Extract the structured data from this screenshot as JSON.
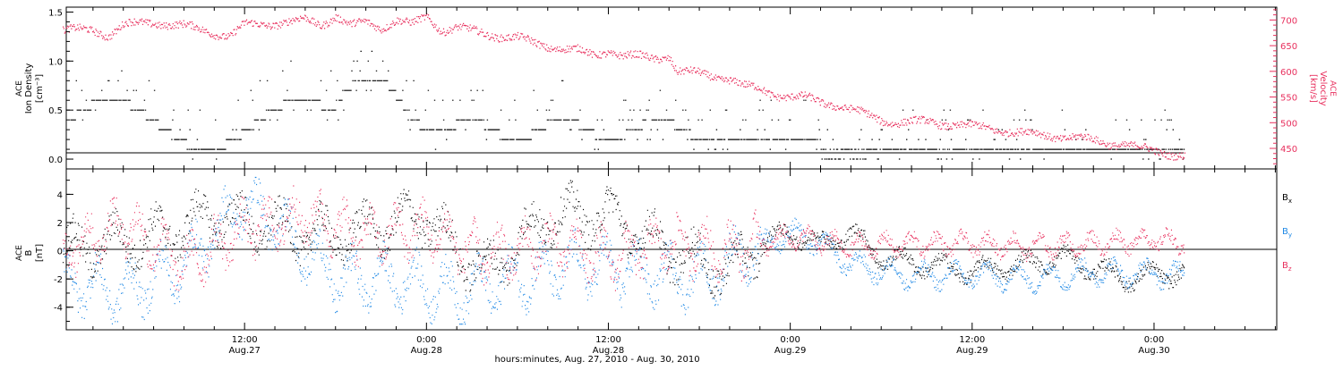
{
  "colors": {
    "black": "#000000",
    "velocity": "#e8305e",
    "bx": "#000000",
    "by": "#1e88e5",
    "bz": "#e8305e"
  },
  "x_axis": {
    "title": "hours:minutes, Aug. 27, 2010 - Aug. 30, 2010",
    "ticks": [
      {
        "hour": 12,
        "time": "12:00",
        "date": "Aug.27"
      },
      {
        "hour": 24,
        "time": "0:00",
        "date": "Aug.28"
      },
      {
        "hour": 36,
        "time": "12:00",
        "date": "Aug.28"
      },
      {
        "hour": 48,
        "time": "0:00",
        "date": "Aug.29"
      },
      {
        "hour": 60,
        "time": "12:00",
        "date": "Aug.29"
      },
      {
        "hour": 72,
        "time": "0:00",
        "date": "Aug.30"
      }
    ]
  },
  "chart_data": [
    {
      "type": "scatter",
      "panel": "top",
      "ylabel_left": [
        "ACE",
        "Ion Density",
        "[cm⁻³]"
      ],
      "ylabel_right": [
        "ACE",
        "Velocity",
        "[km/s]"
      ],
      "ylim_left": [
        -0.1,
        1.55
      ],
      "yticks_left": [
        "0.0",
        "0.5",
        "1.0",
        "1.5"
      ],
      "ylim_right": [
        410,
        725
      ],
      "yticks_right": [
        "450",
        "500",
        "550",
        "600",
        "650",
        "700"
      ],
      "density_levels": [
        0.1,
        0.2,
        0.3,
        0.4,
        0.5,
        0.6,
        0.7,
        0.8,
        0.9,
        1.0,
        1.1
      ],
      "velocity_path": [
        [
          2,
          680
        ],
        [
          3,
          670
        ],
        [
          4,
          690
        ],
        [
          6,
          695
        ],
        [
          8,
          688
        ],
        [
          10,
          675
        ],
        [
          11,
          668
        ],
        [
          12,
          690
        ],
        [
          14,
          693
        ],
        [
          16,
          700
        ],
        [
          17,
          690
        ],
        [
          18,
          708
        ],
        [
          19,
          688
        ],
        [
          20,
          695
        ],
        [
          21,
          685
        ],
        [
          22,
          700
        ],
        [
          23,
          690
        ],
        [
          24,
          706
        ],
        [
          25,
          680
        ],
        [
          26,
          685
        ],
        [
          27,
          678
        ],
        [
          28,
          672
        ],
        [
          29,
          668
        ],
        [
          30,
          665
        ],
        [
          31,
          655
        ],
        [
          32,
          648
        ],
        [
          33,
          645
        ],
        [
          34,
          640
        ],
        [
          35,
          630
        ],
        [
          36,
          640
        ],
        [
          37,
          630
        ],
        [
          38,
          628
        ],
        [
          39,
          625
        ],
        [
          40,
          630
        ],
        [
          40.5,
          600
        ],
        [
          42,
          595
        ],
        [
          43,
          590
        ],
        [
          44,
          585
        ],
        [
          45,
          570
        ],
        [
          46,
          565
        ],
        [
          47,
          555
        ],
        [
          48,
          550
        ],
        [
          49,
          548
        ],
        [
          50,
          540
        ],
        [
          51,
          535
        ],
        [
          52,
          525
        ],
        [
          53,
          515
        ],
        [
          54,
          505
        ],
        [
          55,
          500
        ],
        [
          56,
          500
        ],
        [
          57,
          502
        ],
        [
          58,
          498
        ],
        [
          59,
          495
        ],
        [
          60,
          492
        ],
        [
          61,
          490
        ],
        [
          62,
          485
        ],
        [
          63,
          480
        ],
        [
          64,
          478
        ],
        [
          65,
          475
        ],
        [
          66,
          472
        ],
        [
          67,
          470
        ],
        [
          68,
          465
        ],
        [
          69,
          460
        ],
        [
          70,
          458
        ],
        [
          71,
          450
        ],
        [
          72,
          445
        ],
        [
          73,
          440
        ],
        [
          74,
          435
        ]
      ],
      "velocity_step_after_hour": 46.5,
      "x_range_hours": [
        0,
        74
      ]
    },
    {
      "type": "scatter",
      "panel": "bottom",
      "ylabel": [
        "ACE",
        "B",
        "[nT]"
      ],
      "ylim": [
        -5.6,
        5.8
      ],
      "yticks": [
        "-4",
        "-2",
        "0",
        "2",
        "4"
      ],
      "series": [
        {
          "name": "Bx",
          "sub": "x",
          "color": "#000000",
          "path": [
            [
              0,
              0
            ],
            [
              6,
              1
            ],
            [
              10,
              2.5
            ],
            [
              14,
              1.5
            ],
            [
              18,
              1
            ],
            [
              24,
              2.5
            ],
            [
              26,
              0
            ],
            [
              28,
              -1.5
            ],
            [
              32,
              2.5
            ],
            [
              36,
              2.5
            ],
            [
              40,
              0
            ],
            [
              44,
              -1.5
            ],
            [
              46,
              0.5
            ],
            [
              48,
              1.3
            ],
            [
              50,
              0.5
            ],
            [
              52,
              1.3
            ],
            [
              54,
              -0.5
            ],
            [
              60,
              -1.5
            ],
            [
              66,
              -0.5
            ],
            [
              70,
              -2
            ],
            [
              74,
              -1.5
            ]
          ]
        },
        {
          "name": "By",
          "sub": "y",
          "color": "#1e88e5",
          "path": [
            [
              0,
              -2
            ],
            [
              4,
              -3
            ],
            [
              8,
              -1
            ],
            [
              12,
              3.5
            ],
            [
              15,
              1
            ],
            [
              18,
              -2
            ],
            [
              22,
              -2
            ],
            [
              26,
              -3
            ],
            [
              30,
              -2
            ],
            [
              34,
              -1
            ],
            [
              38,
              -1.5
            ],
            [
              42,
              -2
            ],
            [
              46,
              0.3
            ],
            [
              48,
              1.3
            ],
            [
              50,
              0.5
            ],
            [
              52,
              -1
            ],
            [
              56,
              -1.8
            ],
            [
              60,
              -1.7
            ],
            [
              64,
              -2
            ],
            [
              68,
              -1.5
            ],
            [
              74,
              -1.7
            ]
          ]
        },
        {
          "name": "Bz",
          "sub": "z",
          "color": "#e8305e",
          "path": [
            [
              0,
              0
            ],
            [
              4,
              2
            ],
            [
              8,
              -1
            ],
            [
              12,
              1.5
            ],
            [
              16,
              2.5
            ],
            [
              20,
              1
            ],
            [
              24,
              1.5
            ],
            [
              28,
              -0.5
            ],
            [
              32,
              0.5
            ],
            [
              36,
              -0.5
            ],
            [
              40,
              0.5
            ],
            [
              44,
              0
            ],
            [
              48,
              1
            ],
            [
              52,
              0.3
            ],
            [
              56,
              0.5
            ],
            [
              60,
              0.5
            ],
            [
              64,
              0.3
            ],
            [
              68,
              0.5
            ],
            [
              72,
              0.8
            ],
            [
              74,
              0.5
            ]
          ]
        }
      ],
      "x_range_hours": [
        0,
        74
      ]
    }
  ]
}
